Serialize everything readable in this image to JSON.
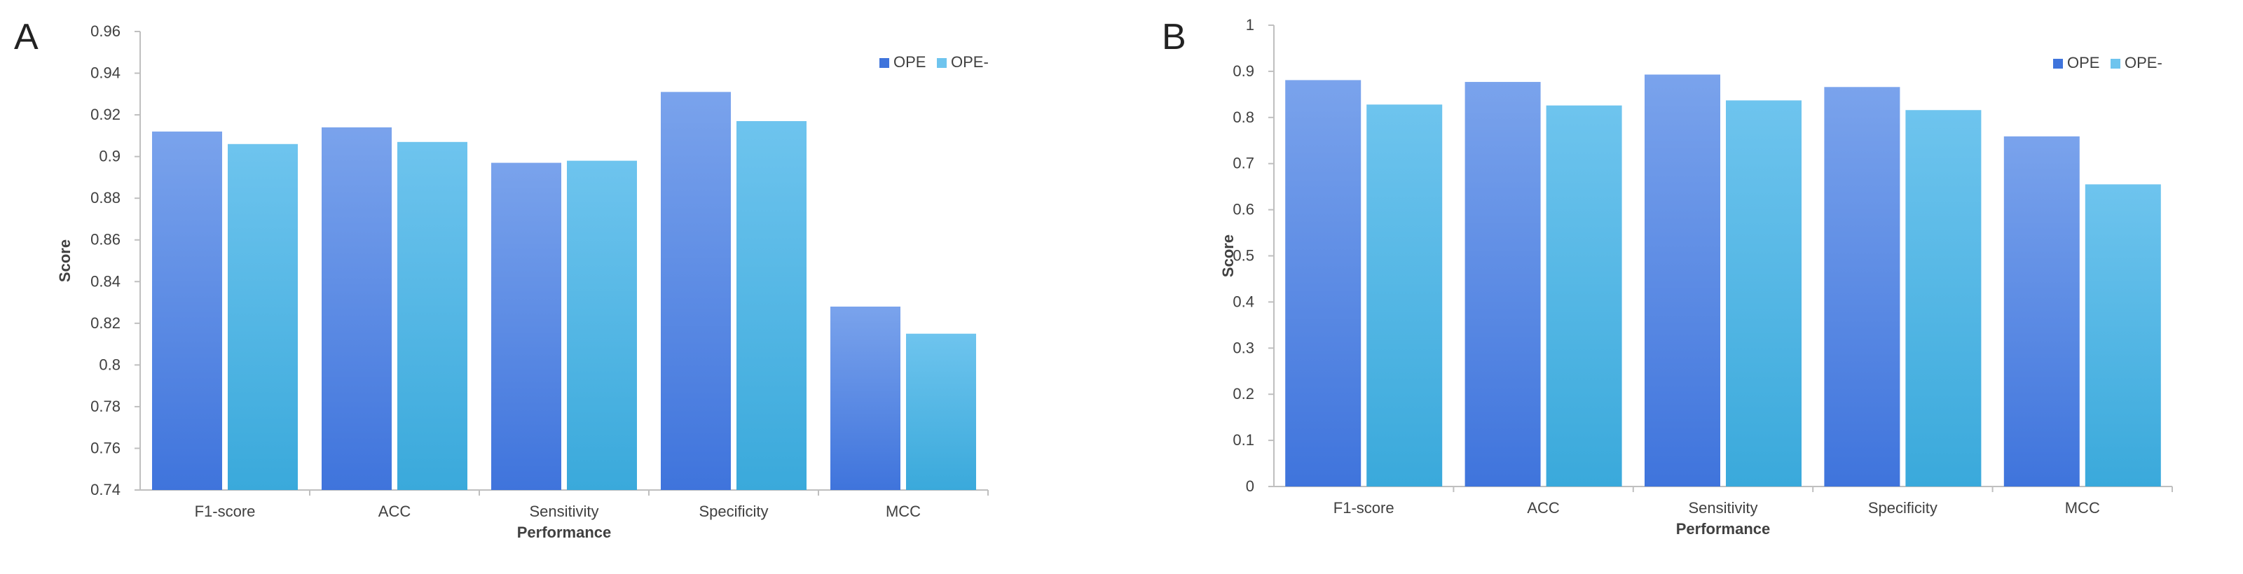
{
  "colors": {
    "ope_top": "#7aa3ec",
    "ope_bottom": "#3f74dc",
    "opeminus_top": "#6ec4ee",
    "opeminus_bottom": "#3aa9db",
    "axis": "#bfbfbf",
    "text": "#404040",
    "panel_label": "#222222"
  },
  "chart_data": [
    {
      "panel_label": "A",
      "type": "bar",
      "title": "",
      "xlabel": "Performance",
      "ylabel": "Score",
      "categories": [
        "F1-score",
        "ACC",
        "Sensitivity",
        "Specificity",
        "MCC"
      ],
      "series": [
        {
          "name": "OPE",
          "values": [
            0.912,
            0.914,
            0.897,
            0.931,
            0.828
          ]
        },
        {
          "name": "OPE-",
          "values": [
            0.906,
            0.907,
            0.898,
            0.917,
            0.815
          ]
        }
      ],
      "ylim": [
        0.74,
        0.96
      ],
      "yticks": [
        "0.74",
        "0.76",
        "0.78",
        "0.8",
        "0.82",
        "0.84",
        "0.86",
        "0.88",
        "0.9",
        "0.92",
        "0.94",
        "0.96"
      ],
      "grid": false,
      "legend": "top-right"
    },
    {
      "panel_label": "B",
      "type": "bar",
      "title": "",
      "xlabel": "Performance",
      "ylabel": "Score",
      "categories": [
        "F1-score",
        "ACC",
        "Sensitivity",
        "Specificity",
        "MCC"
      ],
      "series": [
        {
          "name": "OPE",
          "values": [
            0.881,
            0.877,
            0.893,
            0.866,
            0.759
          ]
        },
        {
          "name": "OPE-",
          "values": [
            0.828,
            0.826,
            0.837,
            0.816,
            0.655
          ]
        }
      ],
      "ylim": [
        0,
        1
      ],
      "yticks": [
        "0",
        "0.1",
        "0.2",
        "0.3",
        "0.4",
        "0.5",
        "0.6",
        "0.7",
        "0.8",
        "0.9",
        "1"
      ],
      "grid": false,
      "legend": "top-right"
    }
  ]
}
